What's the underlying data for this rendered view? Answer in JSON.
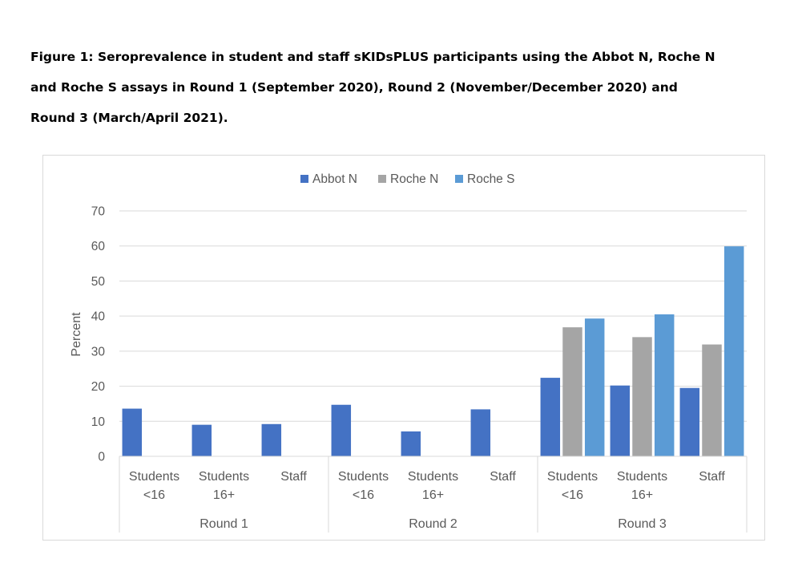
{
  "caption": {
    "line1": "Figure 1: Seroprevalence in student and staff sKIDsPLUS participants using the Abbot N, Roche N",
    "line2": "and Roche S assays in Round 1 (September 2020), Round 2 (November/December 2020) and",
    "line3": "Round 3 (March/April 2021)."
  },
  "chart_data": {
    "type": "bar",
    "title": "",
    "xlabel": "",
    "ylabel": "Percent",
    "ylim": [
      0,
      70
    ],
    "yticks": [
      0,
      10,
      20,
      30,
      40,
      50,
      60,
      70
    ],
    "grid": true,
    "legend_position": "top",
    "groups": [
      {
        "label": "Round 1",
        "categories": [
          [
            "Students",
            "<16"
          ],
          [
            "Students",
            "16+"
          ],
          [
            "Staff"
          ]
        ]
      },
      {
        "label": "Round 2",
        "categories": [
          [
            "Students",
            "<16"
          ],
          [
            "Students",
            "16+"
          ],
          [
            "Staff"
          ]
        ]
      },
      {
        "label": "Round 3",
        "categories": [
          [
            "Students",
            "<16"
          ],
          [
            "Students",
            "16+"
          ],
          [
            "Staff"
          ]
        ]
      }
    ],
    "series": [
      {
        "name": "Abbot N",
        "color": "#4472c4",
        "values": [
          13.6,
          9.0,
          9.2,
          14.7,
          7.1,
          13.4,
          22.4,
          20.2,
          19.5
        ]
      },
      {
        "name": "Roche N",
        "color": "#a5a5a5",
        "values": [
          null,
          null,
          null,
          null,
          null,
          null,
          36.8,
          34.0,
          31.9
        ]
      },
      {
        "name": "Roche S",
        "color": "#5b9bd5",
        "values": [
          null,
          null,
          null,
          null,
          null,
          null,
          39.3,
          40.5,
          59.9
        ]
      }
    ]
  }
}
